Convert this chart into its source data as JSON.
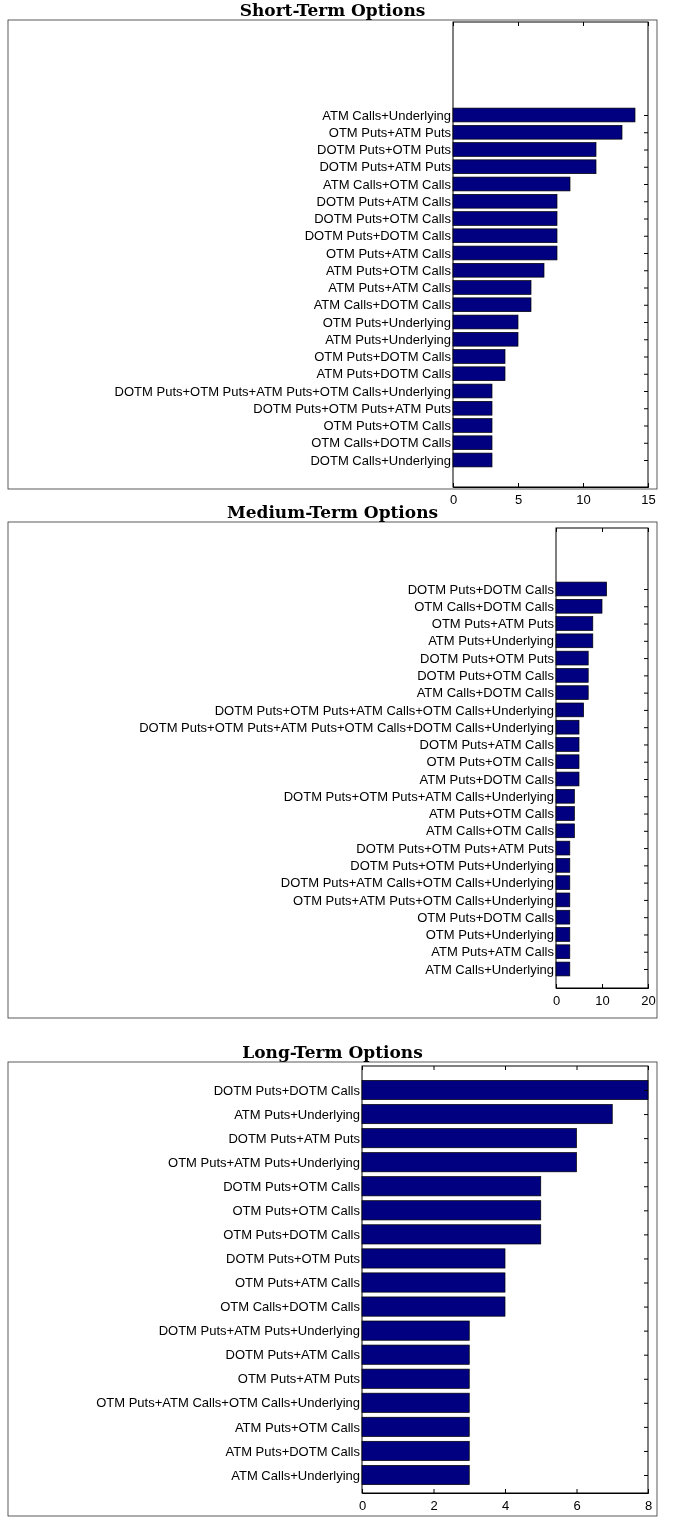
{
  "chart_data": [
    {
      "type": "bar",
      "orientation": "horizontal",
      "title": "Short-Term Options",
      "categories": [
        "ATM Calls+Underlying",
        "OTM Puts+ATM Puts",
        "DOTM Puts+OTM Puts",
        "DOTM Puts+ATM Puts",
        "ATM Calls+OTM Calls",
        "DOTM Puts+ATM Calls",
        "DOTM Puts+OTM Calls",
        "DOTM Puts+DOTM Calls",
        "OTM Puts+ATM Calls",
        "ATM Puts+OTM Calls",
        "ATM Puts+ATM Calls",
        "ATM Calls+DOTM Calls",
        "OTM Puts+Underlying",
        "ATM Puts+Underlying",
        "OTM Puts+DOTM Calls",
        "ATM Puts+DOTM Calls",
        "DOTM Puts+OTM Puts+ATM Puts+OTM Calls+Underlying",
        "DOTM Puts+OTM Puts+ATM Puts",
        "OTM Puts+OTM Calls",
        "OTM Calls+DOTM Calls",
        "DOTM Calls+Underlying"
      ],
      "values": [
        14,
        13,
        11,
        11,
        9,
        8,
        8,
        8,
        8,
        7,
        6,
        6,
        5,
        5,
        4,
        4,
        3,
        3,
        3,
        3,
        3
      ],
      "color": "#000080",
      "xlim": [
        0,
        15
      ],
      "xticks": [
        0,
        5,
        10,
        15
      ]
    },
    {
      "type": "bar",
      "orientation": "horizontal",
      "title": "Medium-Term Options",
      "categories": [
        "DOTM Puts+DOTM Calls",
        "OTM Calls+DOTM Calls",
        "OTM Puts+ATM Puts",
        "ATM Puts+Underlying",
        "DOTM Puts+OTM Puts",
        "DOTM Puts+OTM Calls",
        "ATM Calls+DOTM Calls",
        "DOTM Puts+OTM Puts+ATM Calls+OTM Calls+Underlying",
        "DOTM Puts+OTM Puts+ATM Puts+OTM Calls+DOTM Calls+Underlying",
        "DOTM Puts+ATM Calls",
        "OTM Puts+OTM Calls",
        "ATM Puts+DOTM Calls",
        "DOTM Puts+OTM Puts+ATM Calls+Underlying",
        "ATM Puts+OTM Calls",
        "ATM Calls+OTM Calls",
        "DOTM Puts+OTM Puts+ATM Puts",
        "DOTM Puts+OTM Puts+Underlying",
        "DOTM Puts+ATM Calls+OTM Calls+Underlying",
        "OTM Puts+ATM Puts+OTM Calls+Underlying",
        "OTM Puts+DOTM Calls",
        "OTM Puts+Underlying",
        "ATM Puts+ATM Calls",
        "ATM Calls+Underlying"
      ],
      "values": [
        11,
        10,
        8,
        8,
        7,
        7,
        7,
        6,
        5,
        5,
        5,
        5,
        4,
        4,
        4,
        3,
        3,
        3,
        3,
        3,
        3,
        3,
        3
      ],
      "color": "#000080",
      "xlim": [
        0,
        20
      ],
      "xticks": [
        0,
        10,
        20
      ]
    },
    {
      "type": "bar",
      "orientation": "horizontal",
      "title": "Long-Term Options",
      "categories": [
        "DOTM Puts+DOTM Calls",
        "ATM Puts+Underlying",
        "DOTM Puts+ATM Puts",
        "OTM Puts+ATM Puts+Underlying",
        "DOTM Puts+OTM Calls",
        "OTM Puts+OTM Calls",
        "OTM Puts+DOTM Calls",
        "DOTM Puts+OTM Puts",
        "OTM Puts+ATM Calls",
        "OTM Calls+DOTM Calls",
        "DOTM Puts+ATM Puts+Underlying",
        "DOTM Puts+ATM Calls",
        "OTM Puts+ATM Puts",
        "OTM Puts+ATM Calls+OTM Calls+Underlying",
        "ATM Puts+OTM Calls",
        "ATM Puts+DOTM Calls",
        "ATM Calls+Underlying"
      ],
      "values": [
        8,
        7,
        6,
        6,
        5,
        5,
        5,
        4,
        4,
        4,
        3,
        3,
        3,
        3,
        3,
        3,
        3
      ],
      "color": "#000080",
      "xlim": [
        0,
        8
      ],
      "xticks": [
        0,
        2,
        4,
        6,
        8
      ]
    }
  ]
}
